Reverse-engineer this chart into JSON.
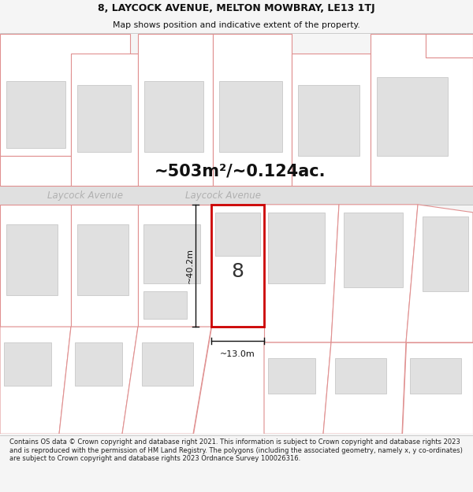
{
  "title_line1": "8, LAYCOCK AVENUE, MELTON MOWBRAY, LE13 1TJ",
  "title_line2": "Map shows position and indicative extent of the property.",
  "area_text": "~503m²/~0.124ac.",
  "street_name": "Laycock Avenue",
  "street_name2": "Laycock Avenue",
  "property_number": "8",
  "dim_height": "~40.2m",
  "dim_width": "~13.0m",
  "footer_text": "Contains OS data © Crown copyright and database right 2021. This information is subject to Crown copyright and database rights 2023 and is reproduced with the permission of HM Land Registry. The polygons (including the associated geometry, namely x, y co-ordinates) are subject to Crown copyright and database rights 2023 Ordnance Survey 100026316.",
  "bg_color": "#f5f5f5",
  "map_bg": "#ffffff",
  "road_color": "#e0e0e0",
  "road_border_color": "#c0c0c0",
  "plot_outline_color": "#e09090",
  "highlight_color": "#cc0000",
  "building_fill": "#e0e0e0",
  "building_border": "#c0c0c0",
  "plot_fill": "#ffffff",
  "title_bg": "#ffffff",
  "footer_bg": "#ffffff",
  "area_text_color": "#111111",
  "street_text_color": "#b0b0b0",
  "dim_color": "#111111"
}
